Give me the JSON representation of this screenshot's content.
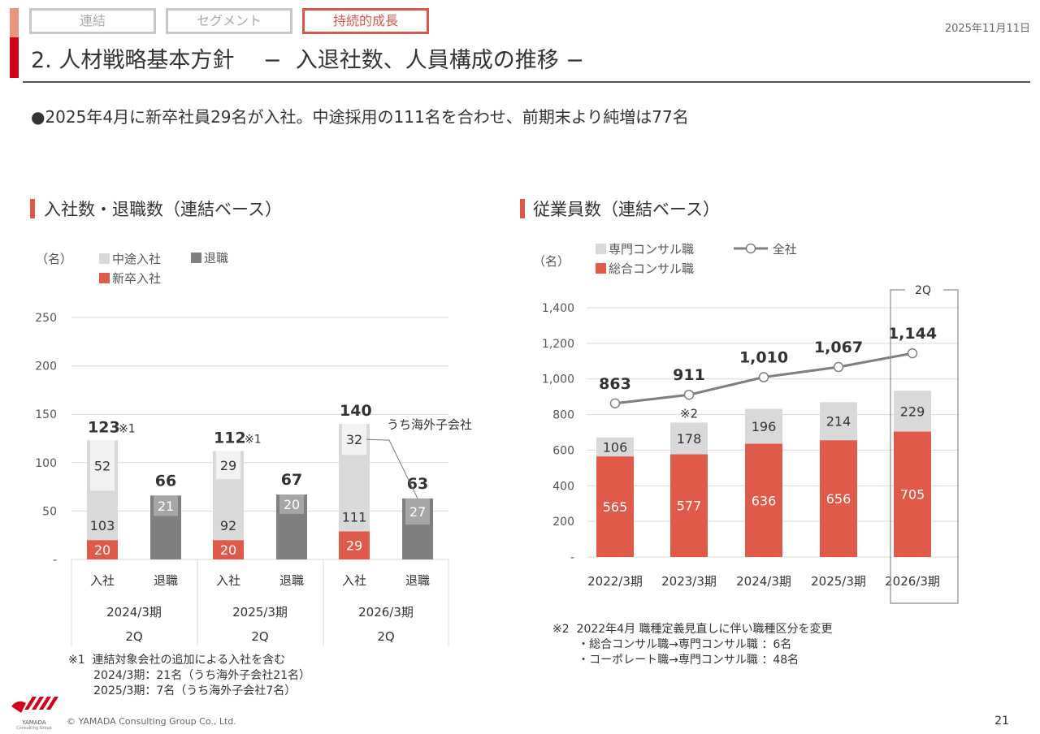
{
  "header": {
    "tabs": [
      {
        "label": "連結",
        "active": false
      },
      {
        "label": "セグメント",
        "active": false
      },
      {
        "label": "持続的成長",
        "active": true
      }
    ],
    "title": "2. 人材戦略基本方針　 −  入退社数、人員構成の推移 −",
    "date": "2025年11月11日"
  },
  "bullet": "●2025年4月に新卒社員29名が入社。中途採用の111名を合わせ、前期末より純増は77名",
  "colors": {
    "red": "#E05A4A",
    "light_gray": "#D9D9D9",
    "lighter_gray": "#F2F2F2",
    "dark_gray": "#7F7F7F",
    "mid_gray": "#A6A6A6",
    "accent": "#D0021B"
  },
  "chart_data": [
    {
      "type": "bar",
      "title": "入社数・退職数（連結ベース）",
      "ylabel": "（名）",
      "ylim": [
        0,
        250
      ],
      "yticks": [
        "-",
        "50",
        "100",
        "150",
        "200",
        "250"
      ],
      "ytick_values": [
        0,
        50,
        100,
        150,
        200,
        250
      ],
      "legend": [
        {
          "label": "中途入社",
          "color": "#D9D9D9"
        },
        {
          "label": "退職",
          "color": "#7F7F7F"
        },
        {
          "label": "新卒入社",
          "color": "#E05A4A"
        }
      ],
      "groups": [
        {
          "period": "2024/3期",
          "sub": "2Q",
          "join_label": "入社",
          "leave_label": "退職",
          "new_grad": 20,
          "mid_career": 103,
          "join_total": "123",
          "join_note": "※1",
          "join_overseas": 52,
          "leave": 66,
          "leave_total": "66",
          "leave_overseas": 21
        },
        {
          "period": "2025/3期",
          "sub": "2Q",
          "join_label": "入社",
          "leave_label": "退職",
          "new_grad": 20,
          "mid_career": 92,
          "join_total": "112",
          "join_note": "※1",
          "join_overseas": 29,
          "leave": 67,
          "leave_total": "67",
          "leave_overseas": 20
        },
        {
          "period": "2026/3期",
          "sub": "2Q",
          "join_label": "入社",
          "leave_label": "退職",
          "new_grad": 29,
          "mid_career": 111,
          "join_total": "140",
          "join_note": "",
          "join_overseas": 32,
          "leave": 63,
          "leave_total": "63",
          "leave_overseas": 27
        }
      ],
      "annotation": "うち海外子会社",
      "footnote": [
        "※1  連結対象会社の追加による入社を含む",
        "       2024/3期：21名（うち海外子会社21名）",
        "       2025/3期：7名（うち海外子会社7名）"
      ]
    },
    {
      "type": "bar",
      "title": "従業員数（連結ベース）",
      "ylabel": "（名）",
      "ylim": [
        0,
        1400
      ],
      "yticks": [
        "-",
        "200",
        "400",
        "600",
        "800",
        "1,000",
        "1,200",
        "1,400"
      ],
      "ytick_values": [
        0,
        200,
        400,
        600,
        800,
        1000,
        1200,
        1400
      ],
      "categories": [
        "2022/3期",
        "2023/3期",
        "2024/3期",
        "2025/3期",
        "2026/3期"
      ],
      "legend": [
        {
          "label": "専門コンサル職",
          "color": "#D9D9D9"
        },
        {
          "label": "全社",
          "color": "#7F7F7F",
          "marker": "line-circle"
        },
        {
          "label": "総合コンサル職",
          "color": "#E05A4A"
        }
      ],
      "series": [
        {
          "name": "総合コンサル職",
          "values": [
            565,
            577,
            636,
            656,
            705
          ]
        },
        {
          "name": "専門コンサル職",
          "values": [
            106,
            178,
            196,
            214,
            229
          ]
        },
        {
          "name": "全社",
          "type": "line",
          "values": [
            863,
            911,
            1010,
            1067,
            1144
          ],
          "labels": [
            "863",
            "911",
            "1,010",
            "1,067",
            "1,144"
          ]
        }
      ],
      "annotations": [
        {
          "category": "2023/3期",
          "text": "※2"
        }
      ],
      "highlight": {
        "category": "2026/3期",
        "label": "2Q"
      },
      "footnote": [
        "※2  2022年4月 職種定義見直しに伴い職種区分を変更",
        "       ・総合コンサル職→専門コンサル職 ：6名",
        "       ・コーポレート職→専門コンサル職 ：48名"
      ]
    }
  ],
  "footer": {
    "logo_name": "YAMADA",
    "logo_sub": "Consulting Group",
    "copyright": "© YAMADA Consulting Group Co., Ltd.",
    "page": "21"
  }
}
